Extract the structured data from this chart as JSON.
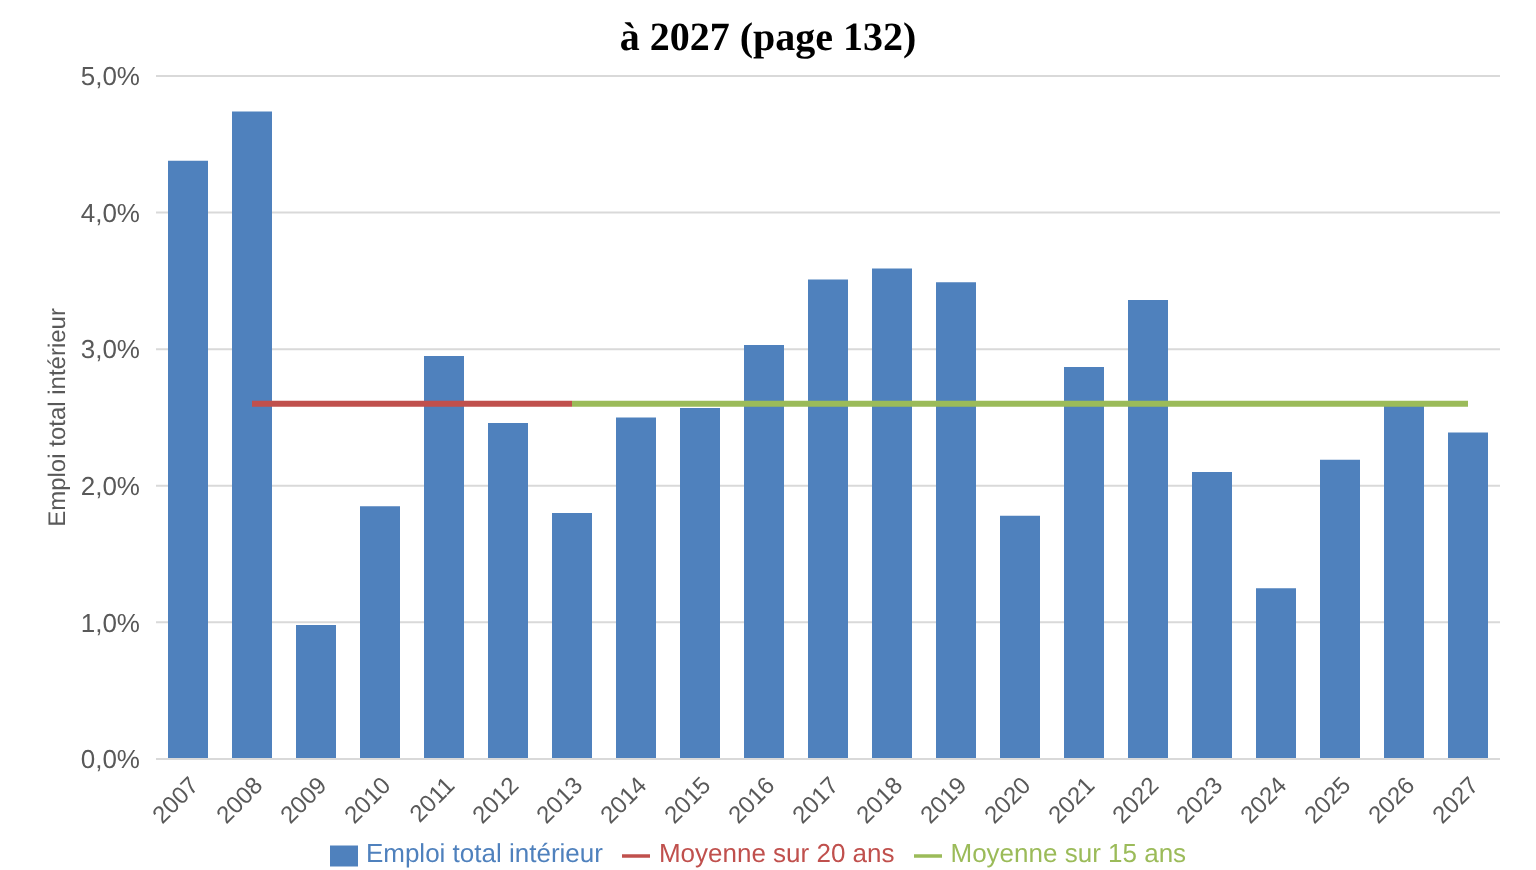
{
  "chart_data": {
    "type": "bar",
    "title": "à 2027 (page 132)",
    "ylabel": "Emploi total intérieur",
    "categories": [
      "2007",
      "2008",
      "2009",
      "2010",
      "2011",
      "2012",
      "2013",
      "2014",
      "2015",
      "2016",
      "2017",
      "2018",
      "2019",
      "2020",
      "2021",
      "2022",
      "2023",
      "2024",
      "2025",
      "2026",
      "2027"
    ],
    "series": [
      {
        "name": "Emploi total intérieur",
        "color": "#4f81bd",
        "values": [
          4.38,
          4.74,
          0.98,
          1.85,
          2.95,
          2.46,
          1.8,
          2.5,
          2.57,
          3.03,
          3.51,
          3.59,
          3.49,
          1.78,
          2.87,
          3.36,
          2.1,
          1.25,
          2.19,
          2.59,
          2.39
        ]
      },
      {
        "name": "Moyenne sur 20 ans",
        "type": "line",
        "color": "#c0504d",
        "values": [
          null,
          2.6,
          2.6,
          2.6,
          2.6,
          2.6,
          2.6,
          null,
          null,
          null,
          null,
          null,
          null,
          null,
          null,
          null,
          null,
          null,
          null,
          null,
          null
        ]
      },
      {
        "name": "Moyenne sur 15 ans",
        "type": "line",
        "color": "#9bbb59",
        "values": [
          null,
          null,
          null,
          null,
          null,
          null,
          2.6,
          2.6,
          2.6,
          2.6,
          2.6,
          2.6,
          2.6,
          2.6,
          2.6,
          2.6,
          2.6,
          2.6,
          2.6,
          2.6,
          2.6
        ]
      }
    ],
    "ylim": [
      0,
      5
    ],
    "yticks": [
      {
        "value": 0,
        "label": "0,0%"
      },
      {
        "value": 1,
        "label": "1,0%"
      },
      {
        "value": 2,
        "label": "2,0%"
      },
      {
        "value": 3,
        "label": "3,0%"
      },
      {
        "value": 4,
        "label": "4,0%"
      },
      {
        "value": 5,
        "label": "5,0%"
      }
    ],
    "grid": "y",
    "legend": "bottom",
    "marker": "none",
    "line_style": "solid"
  }
}
